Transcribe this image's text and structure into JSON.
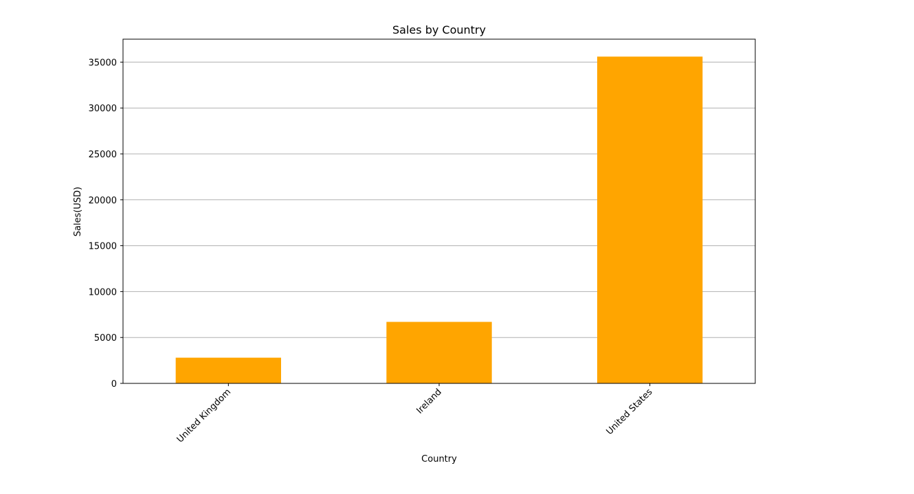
{
  "chart_data": {
    "type": "bar",
    "title": "Sales by Country",
    "xlabel": "Country",
    "ylabel": "Sales(USD)",
    "categories": [
      "United Kingdom",
      "Ireland",
      "United States"
    ],
    "values": [
      2800,
      6700,
      35600
    ],
    "ylim": [
      0,
      37500
    ],
    "yticks": [
      0,
      5000,
      10000,
      15000,
      20000,
      25000,
      30000,
      35000
    ],
    "ytick_labels": [
      "0",
      "5000",
      "10000",
      "15000",
      "20000",
      "25000",
      "30000",
      "35000"
    ],
    "grid": "y-axis horizontal lines",
    "xtick_rotation": 45,
    "colors": {
      "bar": "#ffa500",
      "grid": "#b0b0b0",
      "axes": "#000000",
      "background": "#ffffff"
    }
  }
}
